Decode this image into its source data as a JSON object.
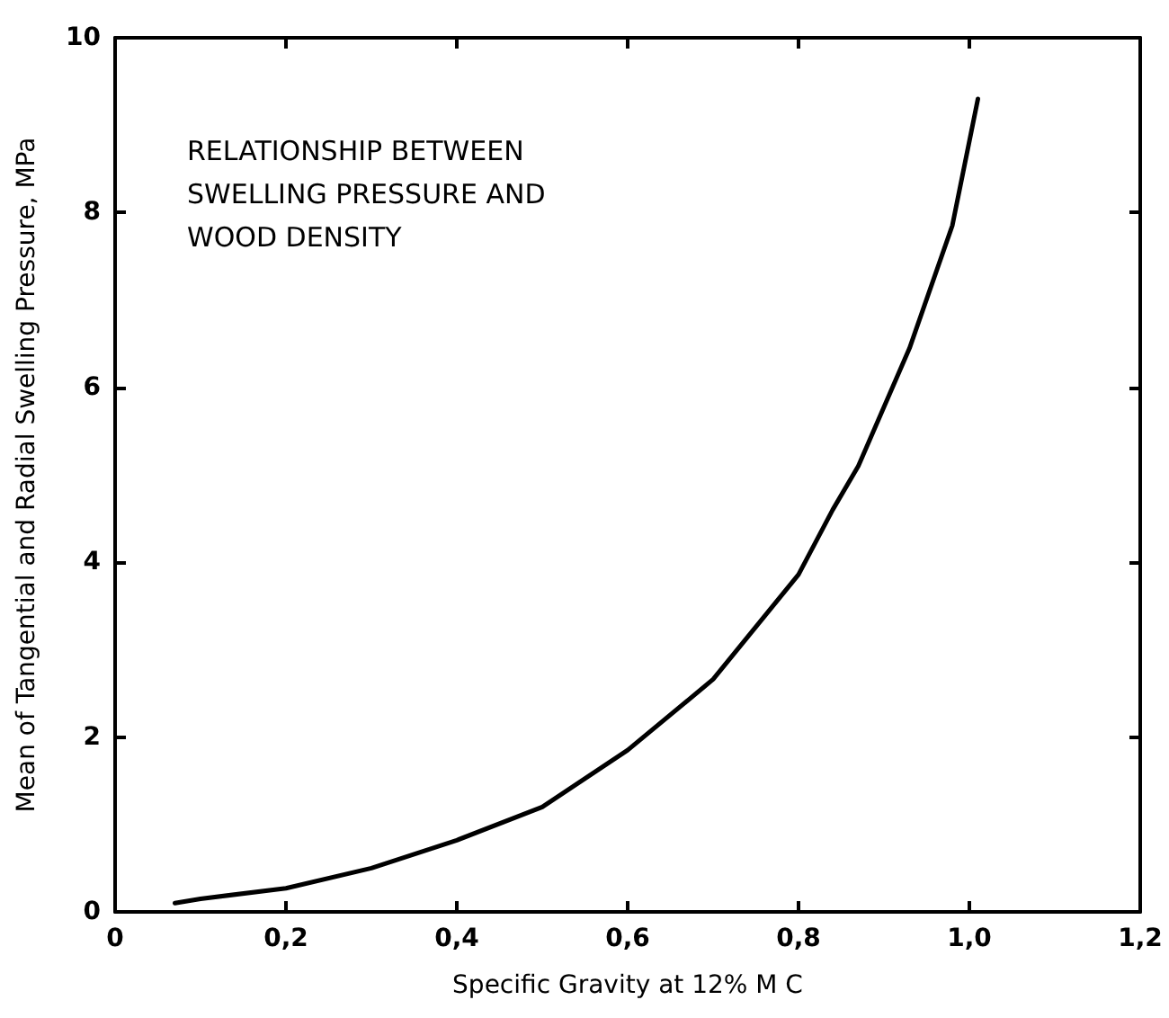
{
  "chart_data": {
    "type": "line",
    "xlabel": "Specific Gravity at 12% M C",
    "ylabel": "Mean of Tangential and Radial Swelling Pressure, MPa",
    "annotations": [
      "RELATIONSHIP BETWEEN\nSWELLING PRESSURE AND\nWOOD DENSITY"
    ],
    "x": [
      0.07,
      0.1,
      0.2,
      0.3,
      0.4,
      0.5,
      0.6,
      0.7,
      0.8,
      0.84,
      0.87,
      0.93,
      0.98,
      1.01
    ],
    "series": [
      {
        "color": "#000000",
        "values": [
          0.1,
          0.15,
          0.27,
          0.5,
          0.82,
          1.2,
          1.85,
          2.66,
          3.86,
          4.6,
          5.1,
          6.45,
          7.85,
          9.3
        ]
      }
    ],
    "xlim": [
      0,
      1.2
    ],
    "xticks": [
      0,
      {
        "value": 0.2,
        "label": "0,2"
      },
      {
        "value": 0.4,
        "label": "0,4"
      },
      {
        "value": 0.6,
        "label": "0,6"
      },
      {
        "value": 0.8,
        "label": "0,8"
      },
      {
        "value": 1.0,
        "label": "1,0"
      },
      {
        "value": 1.2,
        "label": "1,2"
      }
    ],
    "ylim": [
      0,
      10
    ],
    "yticks": [
      0,
      2,
      4,
      6,
      8,
      10
    ],
    "grid": false,
    "marker": "none",
    "line_style": "solid"
  }
}
